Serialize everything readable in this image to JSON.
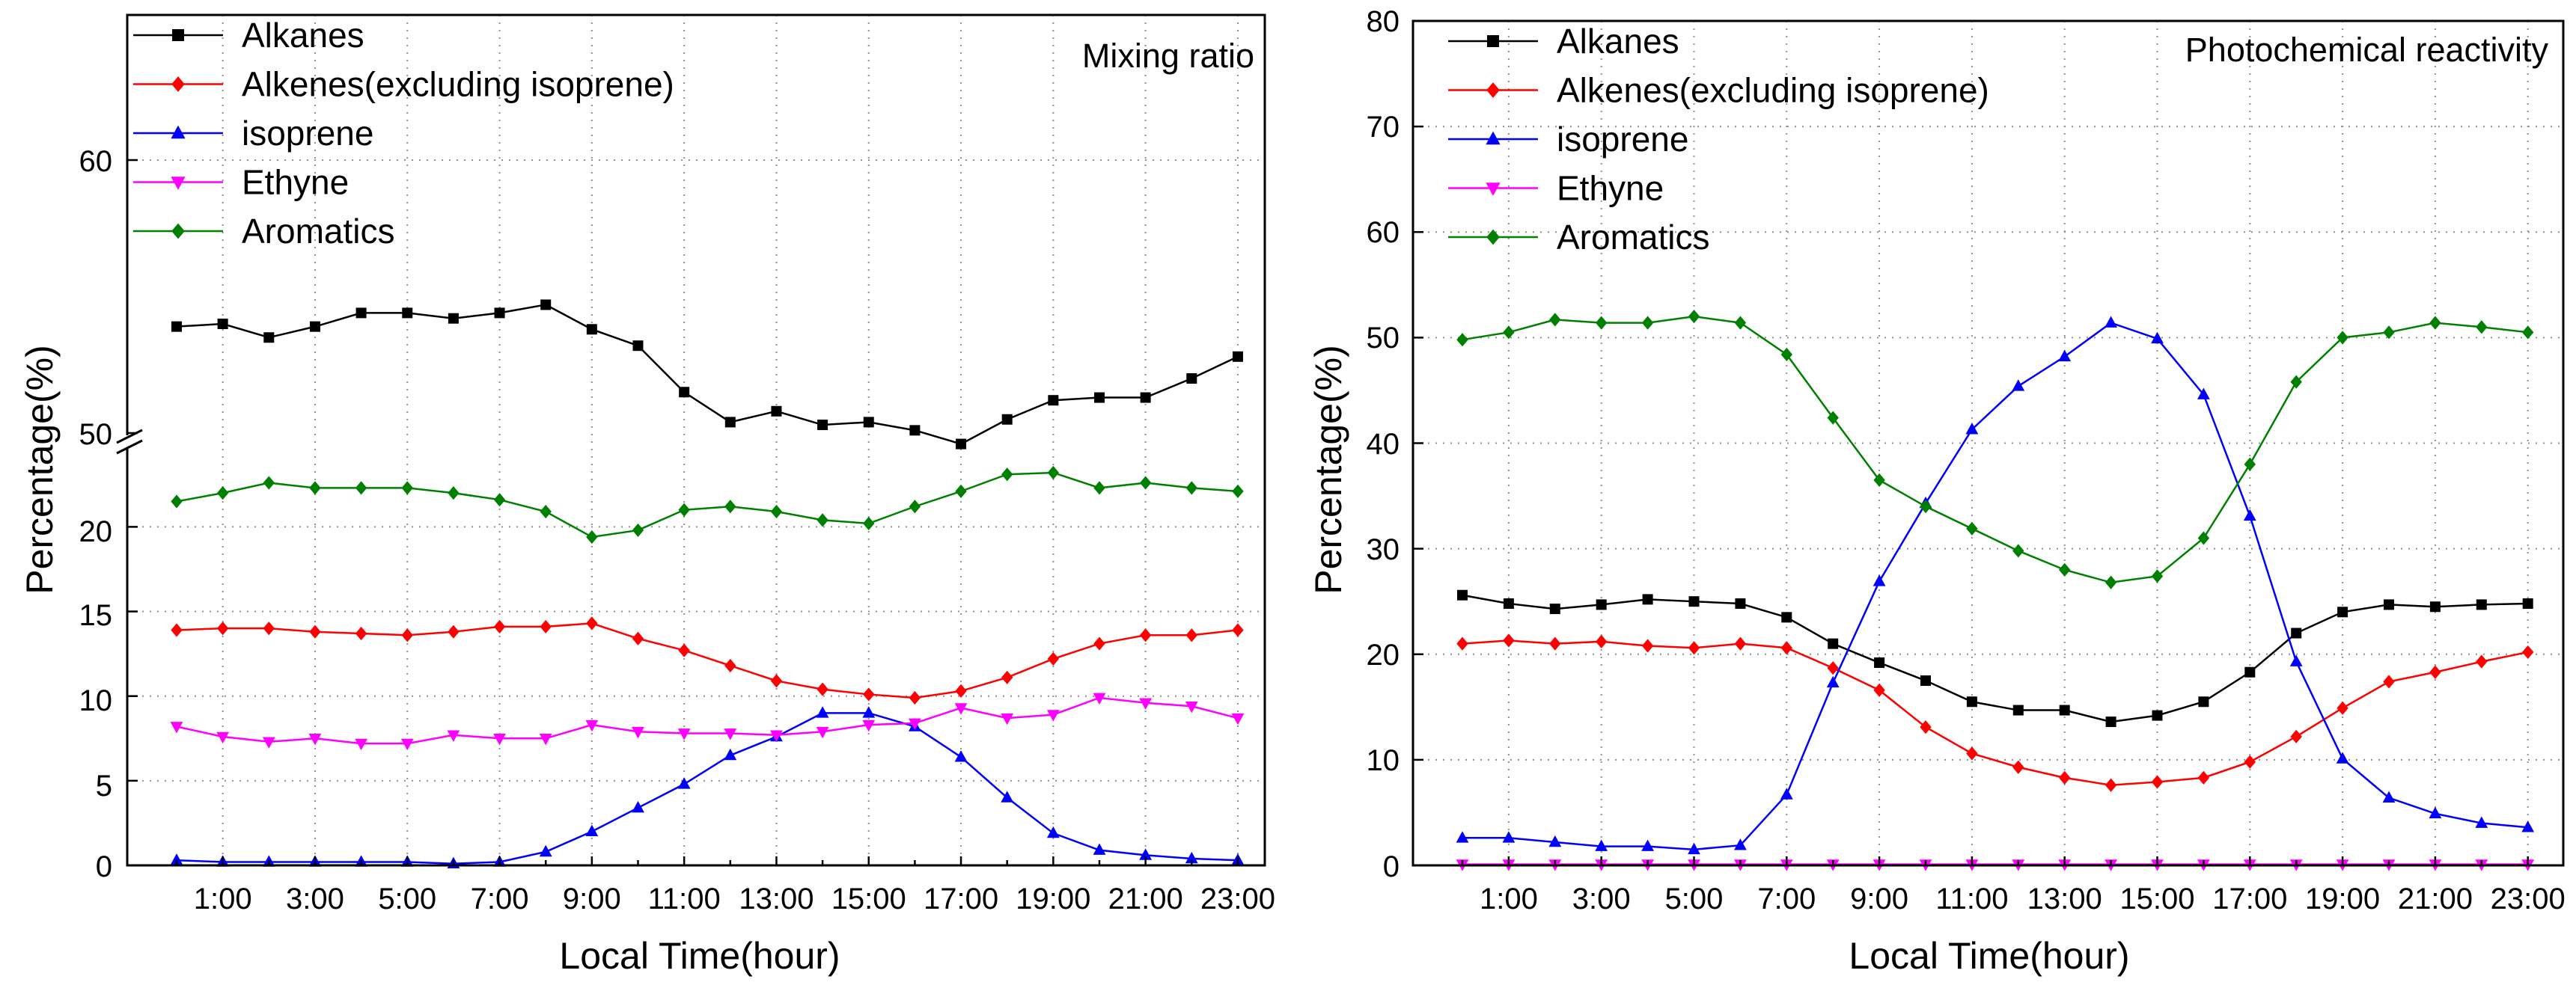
{
  "chart_data": [
    {
      "type": "line",
      "title": "Mixing ratio",
      "xlabel": "Local Time(hour)",
      "ylabel": "Percentage(%)",
      "x": [
        0,
        1,
        2,
        3,
        4,
        5,
        6,
        7,
        8,
        9,
        10,
        11,
        12,
        13,
        14,
        15,
        16,
        17,
        18,
        19,
        20,
        21,
        22,
        23
      ],
      "xticks": [
        "1:00",
        "3:00",
        "5:00",
        "7:00",
        "9:00",
        "11:00",
        "13:00",
        "15:00",
        "17:00",
        "19:00",
        "21:00",
        "23:00"
      ],
      "y_axis_break": {
        "lower_range": [
          0,
          25
        ],
        "upper_range": [
          50,
          65
        ]
      },
      "yticks_lower": [
        "0",
        "5",
        "10",
        "15",
        "20"
      ],
      "yticks_upper": [
        "50",
        "60"
      ],
      "grid": true,
      "legend_position": "top-left",
      "series": [
        {
          "name": "Alkanes",
          "color": "#000000",
          "marker": "square",
          "values": [
            53.9,
            54.0,
            53.5,
            53.9,
            54.4,
            54.4,
            54.2,
            54.4,
            54.7,
            53.8,
            53.2,
            51.5,
            50.4,
            50.8,
            50.3,
            50.4,
            50.1,
            49.6,
            50.5,
            51.2,
            51.3,
            51.3,
            52.0,
            52.8
          ]
        },
        {
          "name": "Alkenes(excluding isoprene)",
          "color": "#ff0000",
          "marker": "diamond",
          "values": [
            13.9,
            14.0,
            14.0,
            13.8,
            13.7,
            13.6,
            13.8,
            14.1,
            14.1,
            14.3,
            13.4,
            12.7,
            11.8,
            10.9,
            10.4,
            10.1,
            9.9,
            10.3,
            11.1,
            12.2,
            13.1,
            13.6,
            13.6,
            13.9
          ]
        },
        {
          "name": "isoprene",
          "color": "#0000ff",
          "marker": "triangle-up",
          "values": [
            0.3,
            0.2,
            0.2,
            0.2,
            0.2,
            0.2,
            0.1,
            0.2,
            0.8,
            2.0,
            3.4,
            4.8,
            6.5,
            7.6,
            9.0,
            9.0,
            8.2,
            6.4,
            4.0,
            1.9,
            0.9,
            0.6,
            0.4,
            0.3
          ]
        },
        {
          "name": "Ethyne",
          "color": "#ff00ff",
          "marker": "triangle-down",
          "values": [
            8.2,
            7.6,
            7.3,
            7.5,
            7.2,
            7.2,
            7.7,
            7.5,
            7.5,
            8.3,
            7.9,
            7.8,
            7.8,
            7.7,
            7.9,
            8.3,
            8.4,
            9.3,
            8.7,
            8.9,
            9.9,
            9.6,
            9.4,
            8.7
          ]
        },
        {
          "name": "Aromatics",
          "color": "#008000",
          "marker": "diamond",
          "values": [
            21.5,
            22.0,
            22.6,
            22.3,
            22.3,
            22.3,
            22.0,
            21.6,
            20.9,
            19.4,
            19.8,
            21.0,
            21.2,
            20.9,
            20.4,
            20.2,
            21.2,
            22.1,
            23.1,
            23.2,
            22.3,
            22.6,
            22.3,
            22.1
          ]
        }
      ]
    },
    {
      "type": "line",
      "title": "Photochemical reactivity",
      "xlabel": "Local Time(hour)",
      "ylabel": "Percentage(%)",
      "x": [
        0,
        1,
        2,
        3,
        4,
        5,
        6,
        7,
        8,
        9,
        10,
        11,
        12,
        13,
        14,
        15,
        16,
        17,
        18,
        19,
        20,
        21,
        22,
        23
      ],
      "xticks": [
        "1:00",
        "3:00",
        "5:00",
        "7:00",
        "9:00",
        "11:00",
        "13:00",
        "15:00",
        "17:00",
        "19:00",
        "21:00",
        "23:00"
      ],
      "ylim": [
        0,
        80
      ],
      "yticks": [
        "0",
        "10",
        "20",
        "30",
        "40",
        "50",
        "60",
        "70",
        "80"
      ],
      "grid": true,
      "legend_position": "top-left",
      "series": [
        {
          "name": "Alkanes",
          "color": "#000000",
          "marker": "square",
          "values": [
            25.6,
            24.8,
            24.3,
            24.7,
            25.2,
            25.0,
            24.8,
            23.5,
            21.0,
            19.2,
            17.5,
            15.5,
            14.7,
            14.7,
            13.6,
            14.2,
            15.5,
            18.3,
            22.0,
            24.0,
            24.7,
            24.5,
            24.7,
            24.8
          ]
        },
        {
          "name": "Alkenes(excluding isoprene)",
          "color": "#ff0000",
          "marker": "diamond",
          "values": [
            21.0,
            21.3,
            21.0,
            21.2,
            20.8,
            20.6,
            21.0,
            20.6,
            18.7,
            16.6,
            13.1,
            10.6,
            9.3,
            8.3,
            7.6,
            7.9,
            8.3,
            9.8,
            12.2,
            14.9,
            17.4,
            18.3,
            19.3,
            20.2
          ]
        },
        {
          "name": "isoprene",
          "color": "#0000ff",
          "marker": "triangle-up",
          "values": [
            2.6,
            2.6,
            2.2,
            1.8,
            1.8,
            1.5,
            1.9,
            6.7,
            17.3,
            26.9,
            34.3,
            41.3,
            45.4,
            48.2,
            51.4,
            49.9,
            44.6,
            33.1,
            19.3,
            10.1,
            6.4,
            4.9,
            4.0,
            3.6
          ]
        },
        {
          "name": "Ethyne",
          "color": "#ff00ff",
          "marker": "triangle-down",
          "values": [
            0.1,
            0.1,
            0.1,
            0.1,
            0.1,
            0.1,
            0.1,
            0.1,
            0.1,
            0.1,
            0.1,
            0.1,
            0.1,
            0.1,
            0.1,
            0.1,
            0.1,
            0.1,
            0.1,
            0.1,
            0.1,
            0.1,
            0.1,
            0.1
          ]
        },
        {
          "name": "Aromatics",
          "color": "#008000",
          "marker": "diamond",
          "values": [
            49.8,
            50.5,
            51.7,
            51.4,
            51.4,
            52.0,
            51.4,
            48.4,
            42.4,
            36.5,
            34.0,
            31.9,
            29.8,
            28.0,
            26.8,
            27.4,
            31.0,
            38.0,
            45.8,
            50.0,
            50.5,
            51.4,
            51.0,
            50.5
          ]
        }
      ]
    }
  ]
}
